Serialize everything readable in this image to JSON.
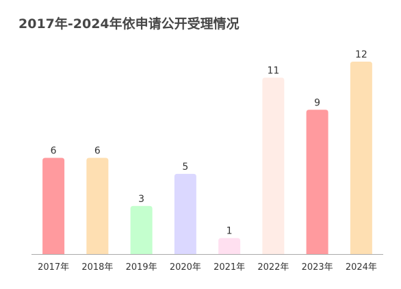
{
  "chart_data": {
    "type": "bar",
    "title": "2017年-2024年依申请公开受理情况",
    "categories": [
      "2017年",
      "2018年",
      "2019年",
      "2020年",
      "2021年",
      "2022年",
      "2023年",
      "2024年"
    ],
    "values": [
      6,
      6,
      3,
      5,
      1,
      11,
      9,
      12
    ],
    "bar_colors": [
      "#ff9a9e",
      "#fedfb2",
      "#c4ffce",
      "#dbd8ff",
      "#ffe0f0",
      "#ffece6",
      "#ff9a9e",
      "#fedfb2"
    ],
    "data_labels": true,
    "ylim": [
      0,
      12
    ],
    "grid": false,
    "legend": "none"
  }
}
